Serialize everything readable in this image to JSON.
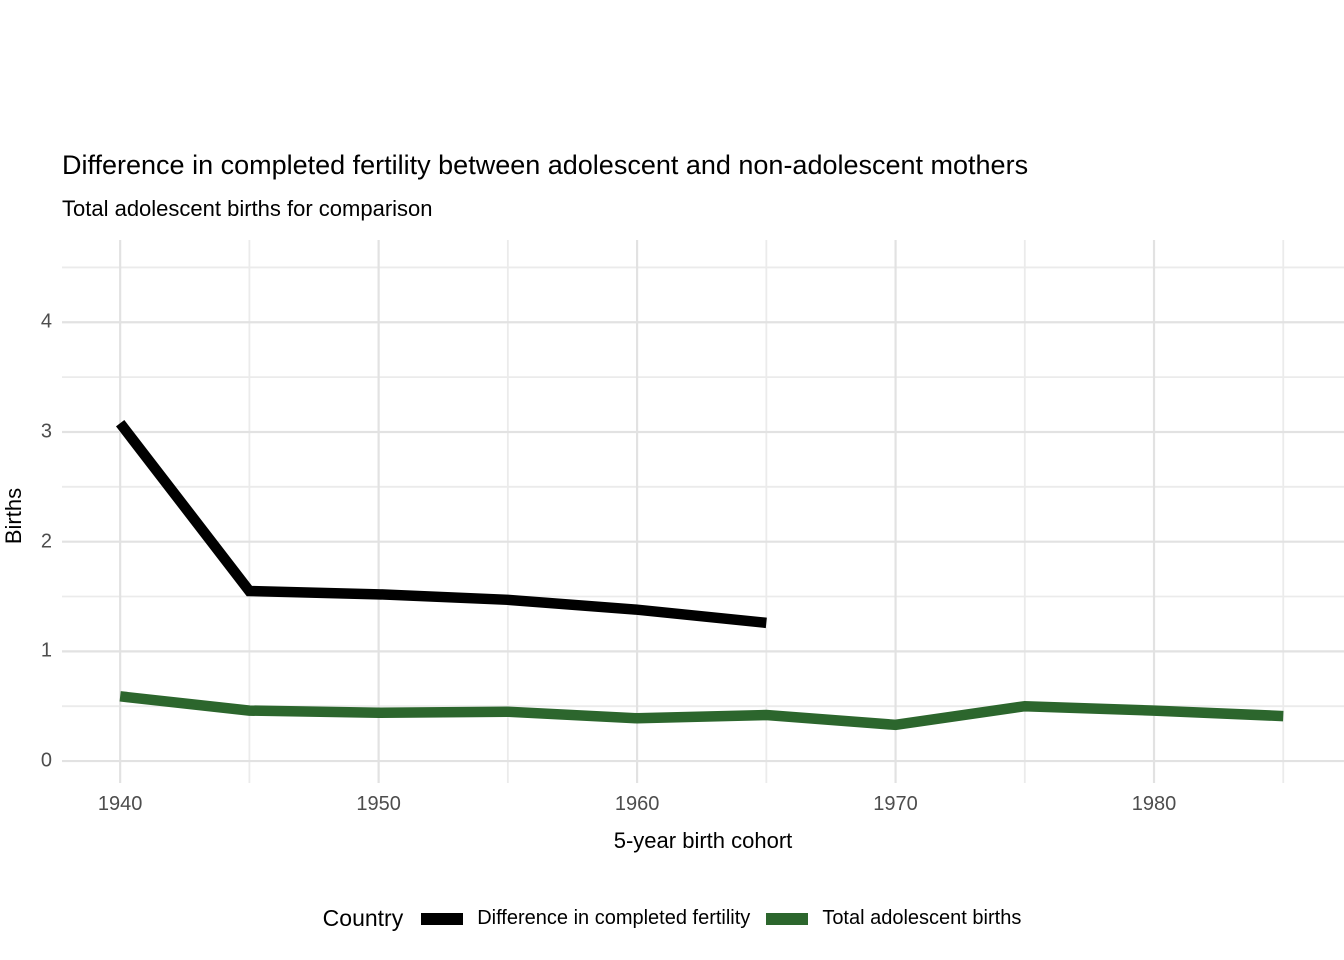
{
  "chart_data": {
    "type": "line",
    "title": "Difference in completed fertility between adolescent and non-adolescent mothers",
    "subtitle": "Total adolescent births for comparison",
    "xlabel": "5-year birth cohort",
    "ylabel": "Births",
    "legend_title": "Country",
    "legend_position": "bottom",
    "grid": true,
    "background_color": "#ffffff",
    "grid_major_color": "#e2e2e2",
    "grid_minor_color": "#ebebeb",
    "tick_label_color": "#4d4d4d",
    "xlim": [
      1937.75,
      1987.35
    ],
    "ylim": [
      -0.2,
      4.75
    ],
    "x_major_ticks": [
      1940,
      1950,
      1960,
      1970,
      1980
    ],
    "x_minor_gridlines": [
      1945,
      1955,
      1965,
      1975,
      1985
    ],
    "y_major_ticks": [
      0,
      1,
      2,
      3,
      4
    ],
    "y_minor_gridlines": [
      0.5,
      1.5,
      2.5,
      3.5,
      4.5
    ],
    "series": [
      {
        "name": "Difference in completed fertility",
        "color": "#000000",
        "x": [
          1940,
          1945,
          1950,
          1955,
          1960,
          1965
        ],
        "values": [
          3.08,
          1.55,
          1.52,
          1.47,
          1.38,
          1.26
        ]
      },
      {
        "name": "Total adolescent births",
        "color": "#2c662d",
        "x": [
          1940,
          1945,
          1950,
          1955,
          1960,
          1965,
          1970,
          1975,
          1980,
          1985
        ],
        "values": [
          0.59,
          0.46,
          0.44,
          0.45,
          0.39,
          0.42,
          0.33,
          0.5,
          0.46,
          0.41
        ]
      }
    ]
  }
}
